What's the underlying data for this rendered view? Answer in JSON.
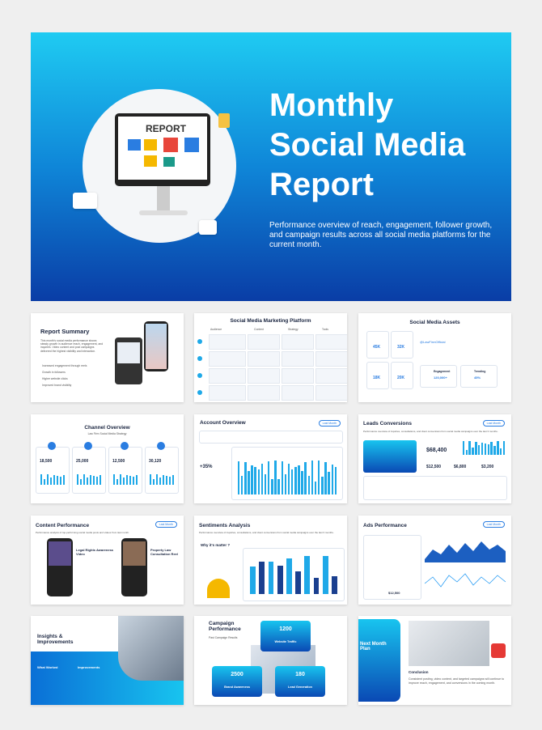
{
  "hero": {
    "title": [
      "Monthly",
      "Social Media",
      "Report"
    ],
    "subtitle": "Performance overview of reach, engagement, follower growth, and campaign results across all social media platforms for the current month.",
    "image_label": "REPORT"
  },
  "slides": [
    {
      "title": "Report Summary",
      "text": "This month's social media performance shows steady growth in audience reach, engagement, and inquiries. Video content and post campaigns delivered the highest visibility and interaction.",
      "items": [
        "Increased engagement through reels",
        "Growth in followers",
        "Higher website clicks",
        "Improved brand visibility"
      ]
    },
    {
      "title": "Social Media Marketing Platform",
      "columns": [
        "Audience",
        "Content",
        "Strategy",
        "Tools"
      ]
    },
    {
      "title": "Social Media Assets",
      "stats": [
        "45K",
        "32K",
        "18K",
        "20K"
      ],
      "handle": "@LawFirmOfficial",
      "cards": [
        {
          "label": "Engagement",
          "value": "120,000+"
        },
        {
          "label": "Trending",
          "value": "45%"
        }
      ]
    },
    {
      "title": "Channel Overview",
      "subtitle": "Law Firm Social Media Strategy",
      "stats": [
        "18,500",
        "25,000",
        "12,500",
        "30,120"
      ]
    },
    {
      "title": "Account Overview",
      "button": "Last Month",
      "stats": [
        "+35%"
      ]
    },
    {
      "title": "Leads Conversions",
      "subtitle": "Performance overview of inquiries, consultations, and client conversions from social media campaigns over the last 3 months.",
      "button": "Last Month",
      "stats": [
        "$68,400",
        "$12,500",
        "$6,800",
        "$3,200"
      ]
    },
    {
      "title": "Content Performance",
      "subtitle": "Performance analysis of top-performing social media posts and videos from last month.",
      "button": "Last Month",
      "items": [
        "Legal Rights Awareness Video",
        "Property Law Consultation Reel"
      ]
    },
    {
      "title": "Sentiments Analysis",
      "subtitle": "Performance overview of inquiries, consultations, and client conversions from social media campaigns over the last 3 months.",
      "items": [
        "Why it's matter ?"
      ]
    },
    {
      "title": "Ads Performance",
      "button": "Last Month",
      "stats": [
        "$12,500"
      ]
    },
    {
      "title": "Insights & Improvements",
      "items": [
        "What Worked",
        "Improvements"
      ]
    },
    {
      "title": "Campaign Performance",
      "subtitle": "Past Campaign Results",
      "stats": [
        {
          "value": "1200",
          "label": "Website Traffic"
        },
        {
          "value": "2500",
          "label": "Brand Awareness"
        },
        {
          "value": "180",
          "label": "Lead Generation"
        }
      ]
    },
    {
      "title": "Next Month Plan",
      "items": [
        "Conclusion"
      ],
      "text": "Consistent posting, video content, and targeted campaigns will continue to improve reach, engagement, and conversions in the coming month."
    }
  ]
}
